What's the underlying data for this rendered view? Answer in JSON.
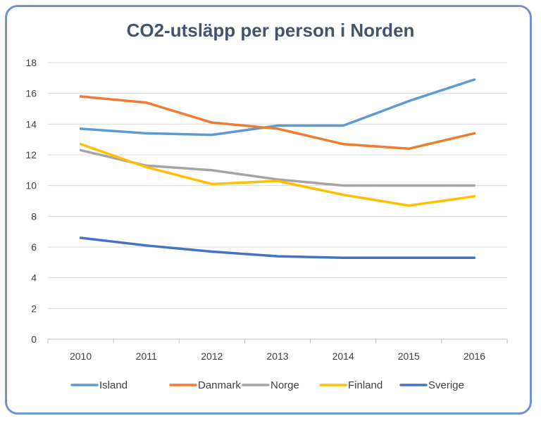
{
  "chart_data": {
    "type": "line",
    "title": "CO2-utsläpp per person i Norden",
    "categories": [
      "2010",
      "2011",
      "2012",
      "2013",
      "2014",
      "2015",
      "2016"
    ],
    "ylim": [
      0,
      18
    ],
    "yticks": [
      0,
      2,
      4,
      6,
      8,
      10,
      12,
      14,
      16,
      18
    ],
    "grid": true,
    "legend": "bottom",
    "series": [
      {
        "name": "Island",
        "color": "#5b9bd5",
        "values": [
          13.7,
          13.4,
          13.3,
          13.9,
          13.9,
          15.5,
          16.9
        ]
      },
      {
        "name": "Danmark",
        "color": "#ed7d31",
        "values": [
          15.8,
          15.4,
          14.1,
          13.7,
          12.7,
          12.4,
          13.4
        ]
      },
      {
        "name": "Norge",
        "color": "#a5a5a5",
        "values": [
          12.3,
          11.3,
          11.0,
          10.4,
          10.0,
          10.0,
          10.0
        ]
      },
      {
        "name": "Finland",
        "color": "#ffc000",
        "values": [
          12.7,
          11.2,
          10.1,
          10.3,
          9.4,
          8.7,
          9.3
        ]
      },
      {
        "name": "Sverige",
        "color": "#4472c4",
        "values": [
          6.6,
          6.1,
          5.7,
          5.4,
          5.3,
          5.3,
          5.3
        ]
      }
    ]
  }
}
